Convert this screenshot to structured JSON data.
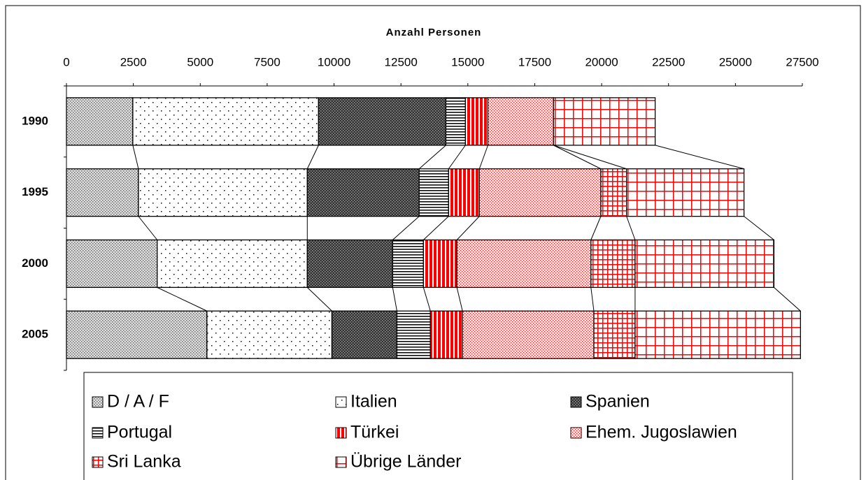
{
  "chart_data": {
    "type": "bar",
    "orientation": "horizontal",
    "stacked": true,
    "xlabel": "Anzahl Personen",
    "categories": [
      "1990",
      "1995",
      "2000",
      "2005"
    ],
    "xlim": [
      0,
      27500
    ],
    "xticks": [
      0,
      2500,
      5000,
      7500,
      10000,
      12500,
      15000,
      17500,
      20000,
      22500,
      25000,
      27500
    ],
    "series": [
      {
        "name": "D / A / F",
        "color": "#666666",
        "values": [
          2480,
          2690,
          3390,
          5250
        ]
      },
      {
        "name": "Italien",
        "color": "#000000",
        "values": [
          6940,
          6310,
          5610,
          4670
        ]
      },
      {
        "name": "Spanien",
        "color": "#333333",
        "values": [
          4760,
          4180,
          3190,
          2430
        ]
      },
      {
        "name": "Portugal",
        "color": "#000000",
        "values": [
          730,
          1100,
          1150,
          1250
        ]
      },
      {
        "name": "Türkei",
        "color": "#ff0000",
        "values": [
          840,
          1150,
          1250,
          1200
        ]
      },
      {
        "name": "Ehem. Jugoslawien",
        "color": "#ff0000",
        "values": [
          2450,
          4540,
          5010,
          4910
        ]
      },
      {
        "name": "Sri Lanka",
        "color": "#ff0000",
        "values": [
          0,
          960,
          1650,
          1540
        ]
      },
      {
        "name": "Übrige Länder",
        "color": "#ff0000",
        "values": [
          3800,
          4390,
          5190,
          6180
        ]
      }
    ]
  }
}
